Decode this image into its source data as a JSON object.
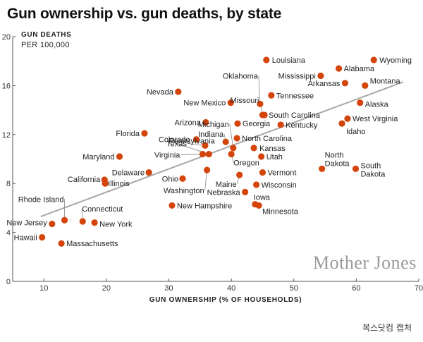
{
  "chart_data": {
    "type": "scatter",
    "title": "Gun ownership vs. gun deaths, by state",
    "ylabel_line1": "GUN DEATHS",
    "ylabel_line2": "PER 100,000",
    "xlabel": "GUN OWNERSHIP (% OF HOUSEHOLDS)",
    "xlim": [
      5,
      70
    ],
    "ylim": [
      0,
      20
    ],
    "xticks": [
      10,
      20,
      30,
      40,
      50,
      60,
      70
    ],
    "yticks": [
      0,
      4,
      8,
      12,
      16,
      20
    ],
    "grid": false,
    "trendline": {
      "x": [
        9.5,
        67.5
      ],
      "y": [
        5.3,
        16.3
      ]
    },
    "point_color": "#d4450c",
    "points": [
      {
        "name": "Wyoming",
        "x": 62.8,
        "y": 18.1
      },
      {
        "name": "Louisiana",
        "x": 45.6,
        "y": 18.1
      },
      {
        "name": "Alabama",
        "x": 57.2,
        "y": 17.4
      },
      {
        "name": "Mississippi",
        "x": 54.3,
        "y": 16.8
      },
      {
        "name": "Arkansas",
        "x": 58.2,
        "y": 16.2
      },
      {
        "name": "Montana",
        "x": 61.4,
        "y": 16.0
      },
      {
        "name": "Nevada",
        "x": 31.5,
        "y": 15.5
      },
      {
        "name": "Tennessee",
        "x": 46.4,
        "y": 15.2
      },
      {
        "name": "Oklahoma",
        "x": 44.6,
        "y": 14.5
      },
      {
        "name": "Missouri",
        "x": 45.0,
        "y": 13.6
      },
      {
        "name": "New Mexico",
        "x": 39.9,
        "y": 14.6
      },
      {
        "name": "Alaska",
        "x": 60.6,
        "y": 14.6
      },
      {
        "name": "South Carolina",
        "x": 45.3,
        "y": 13.6
      },
      {
        "name": "West Virginia",
        "x": 58.6,
        "y": 13.3
      },
      {
        "name": "Arizona",
        "x": 35.9,
        "y": 13.0
      },
      {
        "name": "Georgia",
        "x": 41.0,
        "y": 12.9
      },
      {
        "name": "Kentucky",
        "x": 47.9,
        "y": 12.8
      },
      {
        "name": "Idaho",
        "x": 57.7,
        "y": 12.9
      },
      {
        "name": "Florida",
        "x": 26.1,
        "y": 12.1
      },
      {
        "name": "Indiana",
        "x": 39.1,
        "y": 11.4
      },
      {
        "name": "Michigan",
        "x": 40.3,
        "y": 10.9
      },
      {
        "name": "North Carolina",
        "x": 40.9,
        "y": 11.7
      },
      {
        "name": "Colorado",
        "x": 34.4,
        "y": 11.6
      },
      {
        "name": "Texas",
        "x": 35.8,
        "y": 11.1
      },
      {
        "name": "Kansas",
        "x": 43.6,
        "y": 10.9
      },
      {
        "name": "Virginia",
        "x": 35.4,
        "y": 10.4
      },
      {
        "name": "Pennsylvania",
        "x": 36.4,
        "y": 10.4
      },
      {
        "name": "Oregon",
        "x": 40.0,
        "y": 10.4
      },
      {
        "name": "Utah",
        "x": 44.8,
        "y": 10.2
      },
      {
        "name": "Maryland",
        "x": 22.1,
        "y": 10.2
      },
      {
        "name": "North Dakota",
        "x": 54.5,
        "y": 9.2
      },
      {
        "name": "South Dakota",
        "x": 59.9,
        "y": 9.2
      },
      {
        "name": "Delaware",
        "x": 26.8,
        "y": 8.9
      },
      {
        "name": "Vermont",
        "x": 45.0,
        "y": 8.9
      },
      {
        "name": "Washington",
        "x": 36.1,
        "y": 9.1
      },
      {
        "name": "Maine",
        "x": 41.3,
        "y": 8.7
      },
      {
        "name": "Ohio",
        "x": 32.2,
        "y": 8.4
      },
      {
        "name": "California",
        "x": 19.7,
        "y": 8.3
      },
      {
        "name": "Illinois",
        "x": 19.8,
        "y": 8.0
      },
      {
        "name": "Wisconsin",
        "x": 44.0,
        "y": 7.9
      },
      {
        "name": "Nebraska",
        "x": 42.2,
        "y": 7.3
      },
      {
        "name": "New Hampshire",
        "x": 30.5,
        "y": 6.2
      },
      {
        "name": "Iowa",
        "x": 43.8,
        "y": 6.3
      },
      {
        "name": "Minnesota",
        "x": 44.4,
        "y": 6.2
      },
      {
        "name": "Rhode Island",
        "x": 13.3,
        "y": 5.0
      },
      {
        "name": "Connecticut",
        "x": 16.2,
        "y": 4.9
      },
      {
        "name": "New York",
        "x": 18.1,
        "y": 4.8
      },
      {
        "name": "New Jersey",
        "x": 11.3,
        "y": 4.7
      },
      {
        "name": "Hawaii",
        "x": 9.7,
        "y": 3.6
      },
      {
        "name": "Massachusetts",
        "x": 12.8,
        "y": 3.1
      }
    ]
  },
  "branding": {
    "publisher": "Mother Jones"
  },
  "credit": "복스닷컴 캡처"
}
